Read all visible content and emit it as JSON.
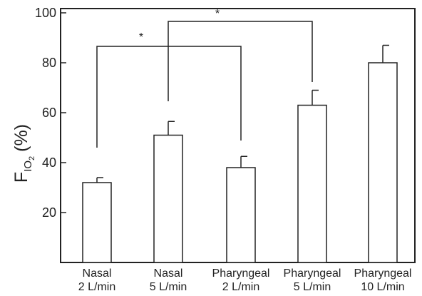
{
  "chart_data": {
    "type": "bar",
    "categories": [
      [
        "Nasal",
        "2 L/min"
      ],
      [
        "Nasal",
        "5 L/min"
      ],
      [
        "Pharyngeal",
        "2 L/min"
      ],
      [
        "Pharyngeal",
        "5 L/min"
      ],
      [
        "Pharyngeal",
        "10 L/min"
      ]
    ],
    "values": [
      32,
      51,
      38,
      63,
      80
    ],
    "errors": [
      2,
      5.5,
      4.5,
      6,
      7
    ],
    "ylabel": {
      "main": "F",
      "sub": "IO",
      "subsub": "2",
      "unit": "(%)"
    },
    "ylim": [
      0,
      100
    ],
    "yticks": [
      "20",
      "40",
      "60",
      "80",
      "100"
    ],
    "grid": false,
    "significance": [
      {
        "from": 0,
        "to": 2,
        "label": "*"
      },
      {
        "from": 1,
        "to": 3,
        "label": "*"
      }
    ],
    "colors": {
      "bar_fill": "#ffffff",
      "stroke": "#222222"
    }
  }
}
